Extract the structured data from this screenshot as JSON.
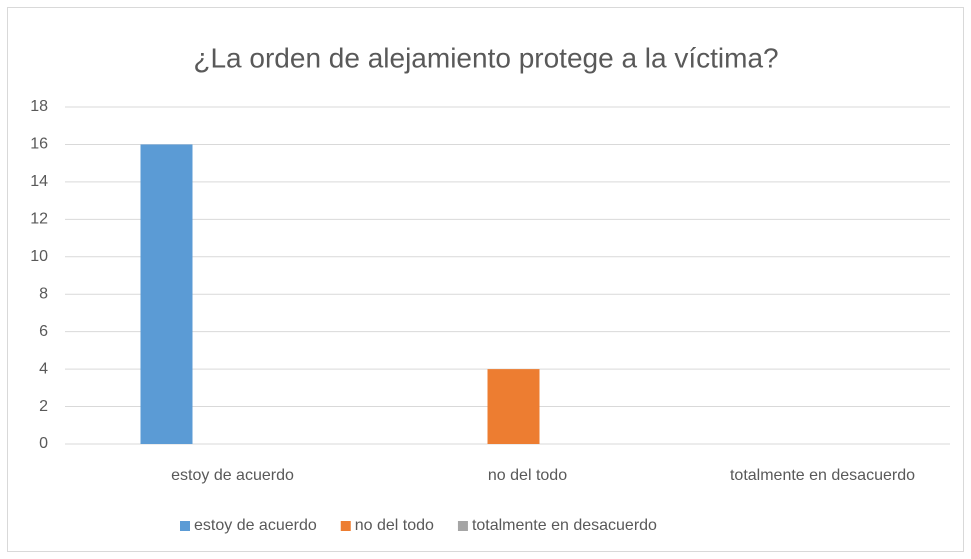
{
  "chart_data": {
    "type": "bar",
    "title": "¿La orden de alejamiento protege a la víctima?",
    "categories": [
      "estoy de acuerdo",
      "no del todo",
      "totalmente en desacuerdo"
    ],
    "series": [
      {
        "name": "estoy de acuerdo",
        "color": "#5b9bd5",
        "values": [
          16,
          null,
          null
        ]
      },
      {
        "name": "no del todo",
        "color": "#ed7d31",
        "values": [
          null,
          4,
          null
        ]
      },
      {
        "name": "totalmente en desacuerdo",
        "color": "#a5a5a5",
        "values": [
          null,
          null,
          null
        ]
      }
    ],
    "ylim": [
      0,
      18
    ],
    "yticks": [
      0,
      2,
      4,
      6,
      8,
      10,
      12,
      14,
      16,
      18
    ],
    "grid": true,
    "legend": "bottom"
  }
}
